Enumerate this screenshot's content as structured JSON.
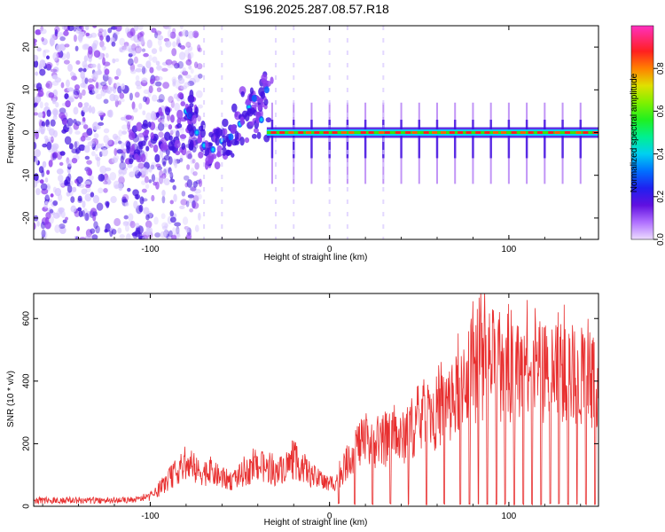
{
  "title": "S196.2025.287.08.57.R18",
  "colors": {
    "signal": "#e83030",
    "frame": "#000000",
    "background": "#ffffff"
  },
  "chart_data": [
    {
      "type": "heatmap",
      "title": "S196.2025.287.08.57.R18",
      "xlabel": "Height of straight line (km)",
      "ylabel": "Frequency (Hz)",
      "xlim": [
        -165,
        150
      ],
      "ylim": [
        -25,
        25
      ],
      "xticks": [
        -100,
        0,
        100
      ],
      "yticks": [
        -20,
        -10,
        0,
        10,
        20
      ],
      "colorbar": {
        "label": "Normalized spectral amplitude",
        "range": [
          0.0,
          1.0
        ],
        "ticks": [
          0.0,
          0.2,
          0.4,
          0.6,
          0.8
        ],
        "colors": [
          "#d8c8ff",
          "#9040f0",
          "#4010e0",
          "#1060ff",
          "#00d0f0",
          "#20e060",
          "#40e000",
          "#d0e000",
          "#ff6000",
          "#ff2020",
          "#ff20a0",
          "#ff30c0"
        ]
      },
      "features": {
        "noise_region_x": [
          -165,
          -80
        ],
        "transition_region_x": [
          -80,
          -35
        ],
        "carrier_region_x": [
          -35,
          150
        ],
        "carrier_frequency_hz": 0,
        "carrier_spike_heights_km": [
          -32,
          -20,
          -10,
          0,
          10,
          20,
          30,
          40,
          50,
          60,
          70,
          80,
          90,
          100,
          110,
          120,
          130,
          140
        ]
      }
    },
    {
      "type": "line",
      "xlabel": "Height of straight line (km)",
      "ylabel": "SNR (10 * v/v)",
      "xlim": [
        -165,
        150
      ],
      "ylim": [
        0,
        680
      ],
      "xticks": [
        -100,
        0,
        100
      ],
      "yticks": [
        0,
        200,
        400,
        600
      ],
      "series": [
        {
          "name": "SNR",
          "color": "#e83030",
          "envelope_x": [
            -165,
            -140,
            -110,
            -100,
            -95,
            -90,
            -85,
            -80,
            -75,
            -70,
            -65,
            -60,
            -55,
            -50,
            -45,
            -40,
            -35,
            -30,
            -25,
            -20,
            -15,
            -10,
            -5,
            0,
            5,
            10,
            15,
            20,
            25,
            30,
            35,
            40,
            45,
            50,
            55,
            60,
            65,
            70,
            73,
            75,
            80,
            85,
            90,
            95,
            100,
            105,
            110,
            120,
            130,
            140,
            150
          ],
          "envelope_y": [
            18,
            22,
            25,
            40,
            70,
            110,
            150,
            175,
            150,
            145,
            140,
            120,
            110,
            130,
            150,
            175,
            160,
            140,
            170,
            190,
            170,
            130,
            110,
            90,
            120,
            190,
            260,
            270,
            250,
            270,
            290,
            280,
            330,
            360,
            380,
            400,
            420,
            450,
            520,
            560,
            580,
            600,
            610,
            590,
            580,
            570,
            580,
            560,
            570,
            550,
            550
          ],
          "dropout_heights_km": [
            5,
            14,
            24,
            34,
            44,
            54,
            64,
            73,
            78,
            83,
            88,
            93,
            98,
            103,
            108,
            113,
            118,
            123,
            128,
            133,
            138,
            143,
            148
          ]
        }
      ]
    }
  ]
}
